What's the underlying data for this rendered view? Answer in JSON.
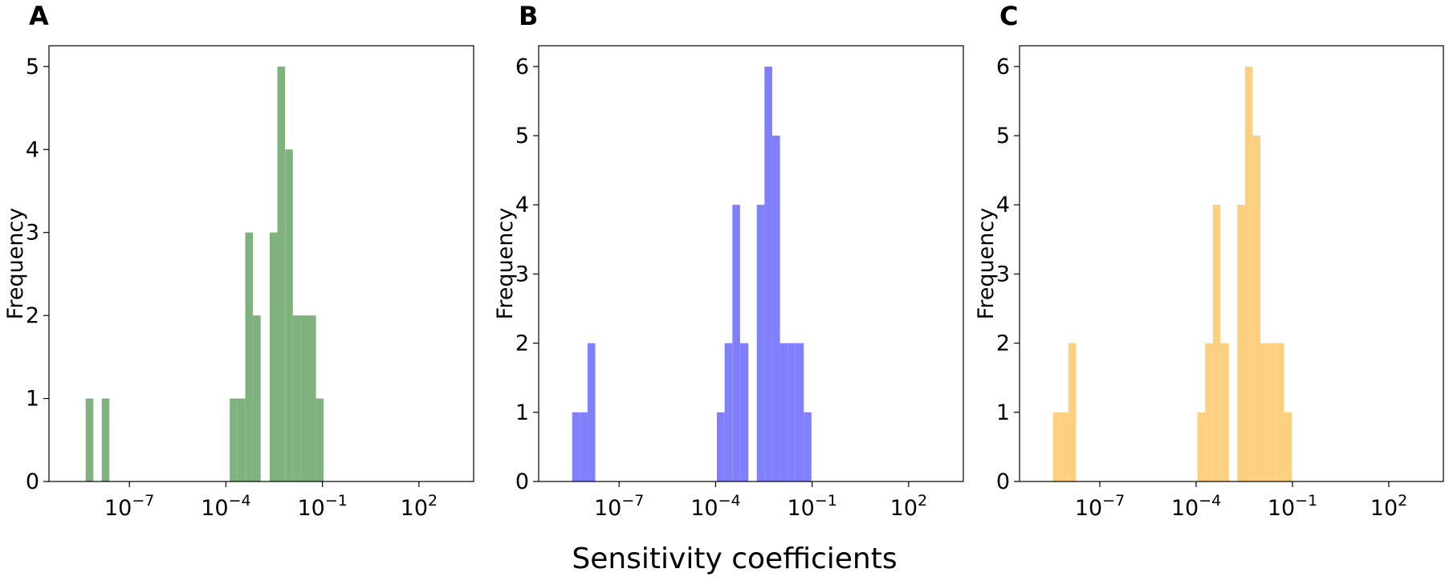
{
  "figure": {
    "xlabel": "Sensitivity coefficients"
  },
  "chart_data": [
    {
      "panel": "A",
      "type": "bar",
      "color": "#7fb27f",
      "xscale": "log",
      "xlim_exp": [
        -9.5,
        3.7
      ],
      "ylim": [
        0,
        5.25
      ],
      "yticks": [
        0,
        1,
        2,
        3,
        4,
        5
      ],
      "xticks": [
        {
          "base": "10",
          "exp": "−7",
          "value_exp": -7
        },
        {
          "base": "10",
          "exp": "−4",
          "value_exp": -4
        },
        {
          "base": "10",
          "exp": "−1",
          "value_exp": -1
        },
        {
          "base": "10",
          "exp": "2",
          "value_exp": 2
        }
      ],
      "ylabel": "Frequency",
      "bins": [
        {
          "log10_left": -8.36,
          "log10_right": -8.12,
          "count": 1
        },
        {
          "log10_left": -7.86,
          "log10_right": -7.62,
          "count": 1
        },
        {
          "log10_left": -3.88,
          "log10_right": -3.64,
          "count": 1
        },
        {
          "log10_left": -3.64,
          "log10_right": -3.4,
          "count": 1
        },
        {
          "log10_left": -3.4,
          "log10_right": -3.16,
          "count": 3
        },
        {
          "log10_left": -3.16,
          "log10_right": -2.92,
          "count": 2
        },
        {
          "log10_left": -2.64,
          "log10_right": -2.4,
          "count": 3
        },
        {
          "log10_left": -2.4,
          "log10_right": -2.16,
          "count": 5
        },
        {
          "log10_left": -2.16,
          "log10_right": -1.92,
          "count": 4
        },
        {
          "log10_left": -1.92,
          "log10_right": -1.68,
          "count": 2
        },
        {
          "log10_left": -1.68,
          "log10_right": -1.44,
          "count": 2
        },
        {
          "log10_left": -1.44,
          "log10_right": -1.2,
          "count": 2
        },
        {
          "log10_left": -1.2,
          "log10_right": -0.96,
          "count": 1
        }
      ]
    },
    {
      "panel": "B",
      "type": "bar",
      "color": "#8080ff",
      "xscale": "log",
      "xlim_exp": [
        -9.5,
        3.7
      ],
      "ylim": [
        0,
        6.3
      ],
      "yticks": [
        0,
        1,
        2,
        3,
        4,
        5,
        6
      ],
      "xticks": [
        {
          "base": "10",
          "exp": "−7",
          "value_exp": -7
        },
        {
          "base": "10",
          "exp": "−4",
          "value_exp": -4
        },
        {
          "base": "10",
          "exp": "−1",
          "value_exp": -1
        },
        {
          "base": "10",
          "exp": "2",
          "value_exp": 2
        }
      ],
      "ylabel": "Frequency",
      "bins": [
        {
          "log10_left": -8.46,
          "log10_right": -8.22,
          "count": 1
        },
        {
          "log10_left": -8.22,
          "log10_right": -7.98,
          "count": 1
        },
        {
          "log10_left": -7.98,
          "log10_right": -7.74,
          "count": 2
        },
        {
          "log10_left": -3.96,
          "log10_right": -3.72,
          "count": 1
        },
        {
          "log10_left": -3.72,
          "log10_right": -3.48,
          "count": 2
        },
        {
          "log10_left": -3.48,
          "log10_right": -3.24,
          "count": 4
        },
        {
          "log10_left": -3.24,
          "log10_right": -2.98,
          "count": 2
        },
        {
          "log10_left": -2.72,
          "log10_right": -2.48,
          "count": 4
        },
        {
          "log10_left": -2.48,
          "log10_right": -2.24,
          "count": 6
        },
        {
          "log10_left": -2.24,
          "log10_right": -2.0,
          "count": 5
        },
        {
          "log10_left": -2.0,
          "log10_right": -1.76,
          "count": 2
        },
        {
          "log10_left": -1.76,
          "log10_right": -1.52,
          "count": 2
        },
        {
          "log10_left": -1.52,
          "log10_right": -1.26,
          "count": 2
        },
        {
          "log10_left": -1.26,
          "log10_right": -1.02,
          "count": 1
        }
      ]
    },
    {
      "panel": "C",
      "type": "bar",
      "color": "#fdd080",
      "xscale": "log",
      "xlim_exp": [
        -9.5,
        3.7
      ],
      "ylim": [
        0,
        6.3
      ],
      "yticks": [
        0,
        1,
        2,
        3,
        4,
        5,
        6
      ],
      "xticks": [
        {
          "base": "10",
          "exp": "−7",
          "value_exp": -7
        },
        {
          "base": "10",
          "exp": "−4",
          "value_exp": -4
        },
        {
          "base": "10",
          "exp": "−1",
          "value_exp": -1
        },
        {
          "base": "10",
          "exp": "2",
          "value_exp": 2
        }
      ],
      "ylabel": "Frequency",
      "bins": [
        {
          "log10_left": -8.46,
          "log10_right": -8.22,
          "count": 1
        },
        {
          "log10_left": -8.22,
          "log10_right": -7.98,
          "count": 1
        },
        {
          "log10_left": -7.98,
          "log10_right": -7.74,
          "count": 2
        },
        {
          "log10_left": -3.96,
          "log10_right": -3.72,
          "count": 1
        },
        {
          "log10_left": -3.72,
          "log10_right": -3.48,
          "count": 2
        },
        {
          "log10_left": -3.48,
          "log10_right": -3.24,
          "count": 4
        },
        {
          "log10_left": -3.24,
          "log10_right": -2.98,
          "count": 2
        },
        {
          "log10_left": -2.72,
          "log10_right": -2.48,
          "count": 4
        },
        {
          "log10_left": -2.48,
          "log10_right": -2.24,
          "count": 6
        },
        {
          "log10_left": -2.24,
          "log10_right": -2.0,
          "count": 5
        },
        {
          "log10_left": -2.0,
          "log10_right": -1.76,
          "count": 2
        },
        {
          "log10_left": -1.76,
          "log10_right": -1.52,
          "count": 2
        },
        {
          "log10_left": -1.52,
          "log10_right": -1.26,
          "count": 2
        },
        {
          "log10_left": -1.26,
          "log10_right": -1.02,
          "count": 1
        }
      ]
    }
  ]
}
